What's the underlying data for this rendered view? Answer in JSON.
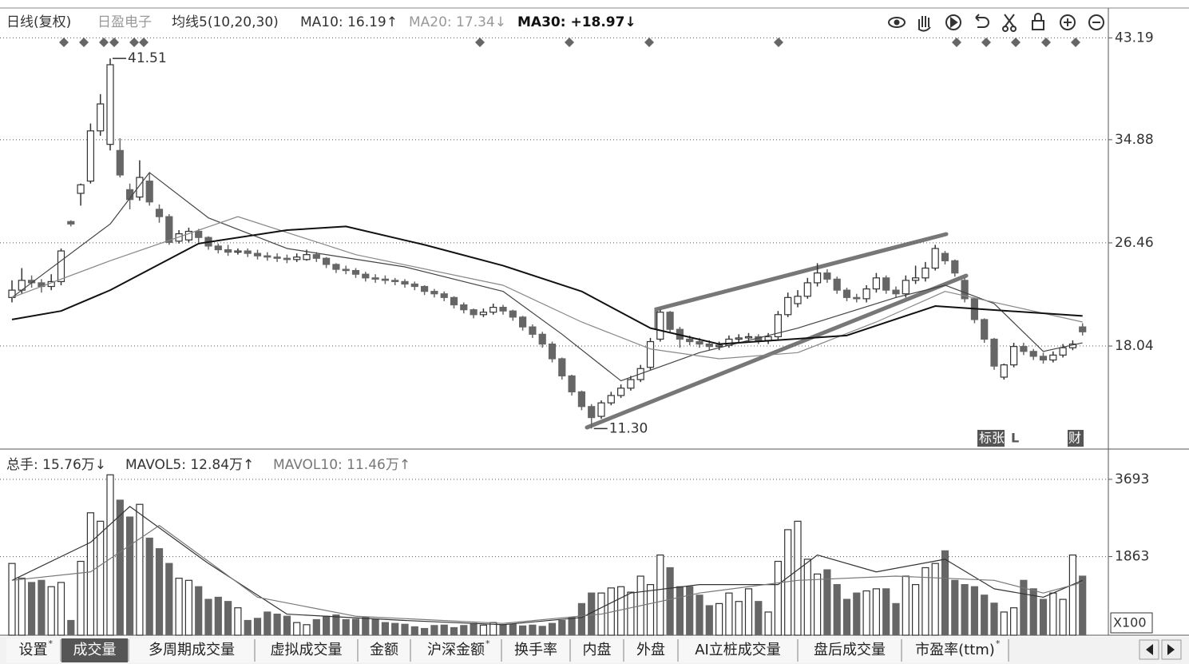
{
  "chart_data": [
    {
      "type": "candlestick",
      "header": [
        "日线(复权)",
        "日盈电子",
        "均线5(10,20,30)",
        "MA10: 16.19↑",
        "MA20: 17.34↓",
        "MA30: +18.97↓"
      ],
      "open": [
        22.0,
        22.6,
        23.4,
        23.2,
        22.9,
        23.3,
        28.2,
        30.5,
        31.5,
        35.6,
        34.5,
        34.0,
        30.8,
        30.2,
        31.5,
        29.2,
        28.6,
        26.6,
        26.7,
        27.4,
        26.9,
        26.2,
        25.9,
        25.7,
        25.8,
        25.6,
        25.4,
        25.3,
        25.2,
        25.1,
        25.1,
        25.5,
        25.2,
        24.7,
        24.3,
        24.2,
        23.9,
        23.6,
        23.5,
        23.4,
        23.3,
        23.1,
        22.9,
        22.5,
        22.3,
        22.0,
        21.4,
        21.0,
        20.6,
        20.8,
        21.2,
        20.9,
        20.4,
        19.6,
        19.0,
        18.2,
        17.0,
        15.6,
        14.3,
        13.1,
        12.3,
        13.4,
        14.0,
        14.6,
        15.3,
        16.3,
        18.6,
        20.8,
        19.4,
        18.6,
        18.4,
        18.2,
        18.0,
        18.1,
        18.6,
        18.7,
        18.8,
        18.5,
        18.8,
        20.6,
        21.5,
        22.1,
        23.2,
        24.0,
        23.5,
        22.6,
        22.0,
        21.9,
        22.7,
        23.6,
        22.6,
        22.3,
        23.4,
        23.6,
        24.4,
        25.6,
        25.0,
        23.4,
        21.9,
        20.2,
        18.6,
        15.5,
        16.5,
        18.0,
        17.6,
        17.2,
        16.9,
        17.3,
        17.9,
        19.6
      ],
      "high": [
        23.4,
        24.4,
        23.8,
        23.5,
        23.9,
        26.0,
        28.3,
        31.3,
        36.2,
        38.6,
        41.51,
        35.0,
        31.3,
        33.2,
        32.2,
        29.6,
        28.8,
        27.5,
        27.7,
        27.6,
        27.0,
        26.4,
        26.3,
        26.0,
        26.0,
        25.9,
        25.7,
        25.6,
        25.5,
        25.6,
        25.9,
        25.7,
        25.3,
        24.8,
        24.6,
        24.4,
        24.1,
        23.9,
        23.8,
        23.6,
        23.5,
        23.3,
        23.0,
        22.7,
        22.5,
        22.1,
        21.6,
        21.1,
        21.1,
        21.5,
        21.4,
        21.0,
        20.5,
        19.8,
        19.2,
        18.4,
        17.1,
        15.7,
        14.4,
        13.3,
        13.6,
        14.3,
        14.9,
        15.6,
        16.5,
        18.7,
        21.0,
        20.9,
        19.6,
        18.9,
        18.7,
        18.5,
        18.4,
        18.9,
        19.0,
        19.1,
        19.0,
        19.1,
        20.9,
        22.4,
        22.6,
        23.6,
        24.8,
        24.3,
        23.7,
        22.8,
        22.3,
        23.0,
        24.0,
        23.8,
        22.9,
        23.8,
        24.6,
        24.9,
        26.3,
        25.8,
        25.1,
        23.6,
        22.0,
        20.3,
        18.7,
        16.6,
        18.3,
        18.3,
        17.8,
        17.5,
        17.6,
        18.2,
        18.5,
        19.9
      ],
      "low": [
        21.6,
        22.3,
        22.8,
        22.4,
        22.6,
        23.0,
        27.8,
        29.5,
        31.3,
        35.2,
        34.0,
        31.8,
        29.2,
        29.9,
        29.5,
        28.1,
        26.3,
        26.4,
        26.5,
        26.5,
        25.9,
        25.6,
        25.4,
        25.5,
        25.3,
        25.1,
        25.0,
        24.9,
        24.8,
        24.9,
        25.0,
        24.9,
        24.4,
        24.0,
        23.9,
        23.6,
        23.3,
        23.2,
        23.1,
        23.0,
        22.8,
        22.6,
        22.2,
        22.0,
        21.7,
        21.1,
        20.7,
        20.3,
        20.4,
        20.6,
        20.6,
        20.1,
        19.3,
        18.7,
        17.9,
        16.7,
        15.3,
        14.0,
        12.8,
        11.3,
        12.1,
        13.2,
        13.8,
        14.4,
        15.1,
        16.1,
        18.4,
        19.1,
        17.9,
        18.1,
        17.9,
        17.7,
        17.7,
        17.9,
        18.3,
        18.4,
        18.2,
        18.2,
        18.6,
        20.4,
        21.2,
        21.9,
        22.9,
        23.2,
        22.3,
        21.7,
        21.6,
        21.6,
        22.4,
        22.3,
        22.0,
        22.0,
        23.1,
        23.3,
        24.2,
        24.7,
        23.7,
        21.6,
        19.9,
        18.3,
        16.1,
        15.3,
        16.3,
        17.3,
        16.9,
        16.6,
        16.7,
        17.1,
        17.7,
        18.9
      ],
      "close": [
        22.6,
        23.4,
        23.2,
        22.9,
        23.3,
        25.8,
        28.0,
        31.2,
        35.6,
        37.8,
        41.0,
        32.0,
        30.0,
        31.8,
        29.8,
        28.6,
        26.5,
        27.2,
        27.4,
        26.9,
        26.2,
        25.9,
        25.7,
        25.8,
        25.6,
        25.4,
        25.3,
        25.2,
        25.1,
        25.3,
        25.5,
        25.2,
        24.7,
        24.3,
        24.2,
        23.9,
        23.6,
        23.5,
        23.4,
        23.3,
        23.1,
        22.9,
        22.5,
        22.3,
        22.0,
        21.4,
        21.0,
        20.6,
        20.8,
        21.2,
        20.9,
        20.4,
        19.6,
        19.0,
        18.2,
        17.0,
        15.6,
        14.3,
        13.1,
        12.2,
        13.4,
        14.0,
        14.6,
        15.3,
        16.2,
        18.4,
        20.8,
        19.4,
        18.6,
        18.4,
        18.2,
        18.0,
        18.1,
        18.6,
        18.7,
        18.8,
        18.5,
        18.8,
        20.6,
        22.0,
        22.1,
        23.2,
        24.0,
        23.5,
        22.6,
        22.0,
        21.9,
        22.7,
        23.6,
        22.6,
        22.3,
        23.4,
        23.6,
        24.4,
        26.0,
        25.0,
        24.0,
        21.9,
        20.2,
        18.6,
        16.4,
        16.5,
        18.0,
        17.6,
        17.2,
        16.9,
        17.3,
        17.9,
        18.2,
        19.2
      ],
      "series": [
        {
          "color": "#444",
          "x": [
            0,
            10,
            14,
            20,
            28,
            40,
            50,
            56,
            62,
            70,
            80,
            90,
            95,
            100,
            105,
            109
          ],
          "values": [
            22.0,
            28.0,
            32.2,
            28.5,
            26.0,
            24.5,
            22.5,
            19.0,
            15.2,
            17.5,
            19.5,
            22.0,
            23.0,
            21.5,
            17.6,
            18.3
          ]
        },
        {
          "color": "#888",
          "x": [
            0,
            10,
            23,
            35,
            50,
            58,
            65,
            72,
            80,
            88,
            95,
            109
          ],
          "values": [
            22.0,
            25.0,
            28.6,
            25.5,
            23.0,
            20.0,
            17.8,
            17.0,
            17.5,
            20.0,
            22.5,
            20.0
          ]
        },
        {
          "color": "#111",
          "x": [
            0,
            5,
            10,
            19,
            28,
            34,
            42,
            50,
            58,
            65,
            72,
            85,
            94,
            109
          ],
          "values": [
            20.2,
            20.9,
            22.6,
            26.4,
            27.5,
            27.8,
            26.3,
            24.6,
            22.5,
            19.5,
            18.2,
            18.9,
            21.3,
            20.5
          ]
        }
      ],
      "annotations": [
        {
          "value": 41.51,
          "label": "41.51"
        },
        {
          "value": 11.3,
          "label": "11.30"
        }
      ],
      "tags": [
        "标张",
        "L",
        "财"
      ],
      "ylim": [
        9.76,
        45.63
      ],
      "yticks": [
        18.04,
        26.46,
        34.88,
        43.19
      ],
      "grid": true
    },
    {
      "type": "bar",
      "header": [
        "总手: 15.76万↓",
        "MAVOL5: 12.84万↑",
        "MAVOL10: 11.46万↑"
      ],
      "values": [
        1700,
        1350,
        1250,
        1300,
        1150,
        1250,
        350,
        1750,
        2900,
        2700,
        3800,
        3200,
        2800,
        3100,
        2300,
        2050,
        1700,
        1350,
        1300,
        1150,
        850,
        900,
        800,
        650,
        350,
        400,
        550,
        500,
        450,
        300,
        250,
        370,
        450,
        480,
        370,
        380,
        420,
        380,
        300,
        280,
        260,
        200,
        160,
        230,
        240,
        180,
        230,
        280,
        240,
        300,
        250,
        260,
        220,
        240,
        210,
        280,
        350,
        420,
        750,
        1000,
        1000,
        1120,
        1150,
        1020,
        1400,
        1200,
        1900,
        1600,
        1150,
        1150,
        950,
        700,
        750,
        1000,
        800,
        1100,
        800,
        550,
        1750,
        2500,
        2700,
        1800,
        1450,
        1550,
        1200,
        850,
        1000,
        1050,
        1100,
        1100,
        750,
        1400,
        1200,
        1600,
        1700,
        2000,
        1300,
        1200,
        1150,
        950,
        760,
        550,
        650,
        1300,
        1100,
        850,
        1000,
        850,
        1900,
        1400
      ],
      "series": [
        {
          "color": "#333",
          "x": [
            0,
            8,
            12,
            20,
            28,
            40,
            50,
            58,
            63,
            70,
            78,
            82,
            88,
            95,
            100,
            105,
            109
          ],
          "values": [
            1300,
            2200,
            3050,
            1700,
            500,
            350,
            250,
            420,
            1000,
            1200,
            1200,
            1900,
            1500,
            1800,
            1100,
            900,
            1300
          ]
        },
        {
          "color": "#777",
          "x": [
            0,
            8,
            15,
            25,
            35,
            50,
            60,
            70,
            80,
            90,
            100,
            105,
            109
          ],
          "values": [
            1300,
            1500,
            2600,
            900,
            450,
            280,
            500,
            1000,
            1300,
            1400,
            1300,
            1000,
            1250
          ]
        }
      ],
      "unit_label": "X100",
      "ylim": [
        0,
        4353
      ],
      "yticks": [
        1863,
        3693
      ],
      "grid": true
    }
  ],
  "tabs": [
    {
      "label": "设置",
      "badge": "*"
    },
    {
      "label": "成交量"
    },
    {
      "label": "多周期成交量"
    },
    {
      "label": "虚拟成交量"
    },
    {
      "label": "金额"
    },
    {
      "label": "沪深金额",
      "badge": "*"
    },
    {
      "label": "换手率"
    },
    {
      "label": "内盘"
    },
    {
      "label": "外盘"
    },
    {
      "label": "AI立桩成交量"
    },
    {
      "label": "盘后成交量"
    },
    {
      "label": "市盈率(ttm)",
      "badge": "*"
    }
  ]
}
